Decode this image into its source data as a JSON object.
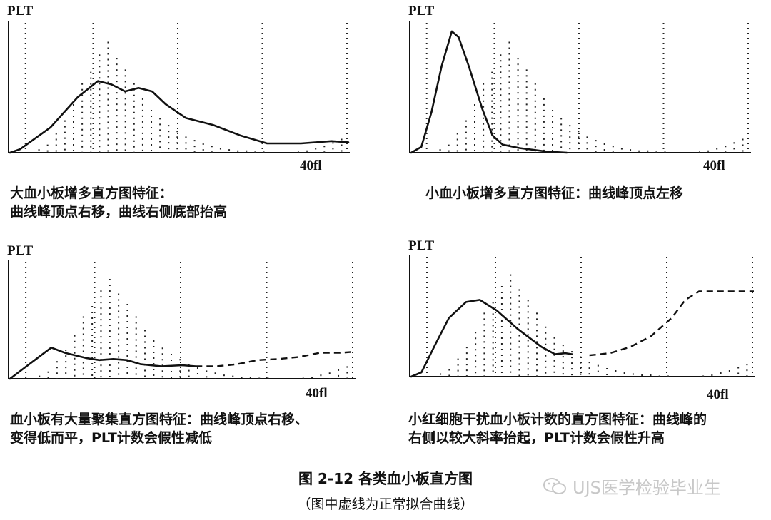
{
  "figure": {
    "title": "图 2-12   各类血小板直方图",
    "subtitle": "（图中虚线为正常拟合曲线）",
    "watermark": "UJS医学检验毕业生"
  },
  "chart_data": [
    {
      "type": "line",
      "ylabel": "PLT",
      "x_tick_label": "40fl",
      "caption": [
        "大血小板增多直方图特征：",
        "曲线峰顶点右移，曲线右侧底部抬高"
      ],
      "solid": [
        [
          0,
          0
        ],
        [
          0.03,
          0.03
        ],
        [
          0.12,
          0.22
        ],
        [
          0.2,
          0.48
        ],
        [
          0.26,
          0.62
        ],
        [
          0.3,
          0.59
        ],
        [
          0.34,
          0.53
        ],
        [
          0.38,
          0.56
        ],
        [
          0.42,
          0.53
        ],
        [
          0.46,
          0.42
        ],
        [
          0.52,
          0.3
        ],
        [
          0.6,
          0.24
        ],
        [
          0.68,
          0.15
        ],
        [
          0.76,
          0.08
        ],
        [
          0.86,
          0.08
        ],
        [
          0.95,
          0.1
        ],
        [
          1.0,
          0.09
        ]
      ],
      "dashed": [],
      "dotted_normal": [
        0,
        0.03,
        0.07,
        0.17,
        0.28,
        0.42,
        0.6,
        0.7,
        0.85,
        0.96,
        0.82,
        0.72,
        0.6,
        0.47,
        0.37,
        0.3,
        0.24,
        0.19,
        0.14,
        0.11,
        0.08,
        0.06,
        0.04,
        0.03,
        0.02,
        0.02,
        0.01,
        0.01,
        0,
        0,
        0,
        0.01,
        0.02,
        0.04,
        0.06,
        0.09,
        0.12
      ],
      "regions": [
        0.05,
        0.25,
        0.5,
        0.75,
        1.0
      ]
    },
    {
      "type": "line",
      "ylabel": "PLT",
      "x_tick_label": "40fl",
      "caption": [
        "小血小板增多直方图特征：曲线峰顶点左移"
      ],
      "solid": [
        [
          0,
          0
        ],
        [
          0.03,
          0.05
        ],
        [
          0.06,
          0.35
        ],
        [
          0.09,
          0.75
        ],
        [
          0.12,
          1.05
        ],
        [
          0.14,
          1.0
        ],
        [
          0.17,
          0.75
        ],
        [
          0.21,
          0.38
        ],
        [
          0.24,
          0.15
        ],
        [
          0.27,
          0.07
        ],
        [
          0.32,
          0.04
        ],
        [
          0.4,
          0.01
        ],
        [
          0.46,
          0
        ]
      ],
      "dashed": [],
      "dotted_normal": [
        0,
        0.03,
        0.07,
        0.17,
        0.28,
        0.42,
        0.6,
        0.7,
        0.85,
        0.96,
        0.82,
        0.72,
        0.6,
        0.47,
        0.37,
        0.3,
        0.24,
        0.19,
        0.14,
        0.11,
        0.08,
        0.06,
        0.04,
        0.03,
        0.02,
        0.02,
        0.01,
        0.01,
        0,
        0,
        0,
        0.01,
        0.02,
        0.04,
        0.06,
        0.09,
        0.12
      ],
      "regions": [
        0.05,
        0.25,
        0.5,
        0.75,
        1.0
      ]
    },
    {
      "type": "line",
      "ylabel": "PLT",
      "x_tick_label": "40fl",
      "caption": [
        "血小板有大量聚集直方图特征：曲线峰顶点右移、",
        "变得低而平，PLT计数会假性减低"
      ],
      "solid": [
        [
          0,
          0
        ],
        [
          0.04,
          0.1
        ],
        [
          0.08,
          0.2
        ],
        [
          0.12,
          0.3
        ],
        [
          0.16,
          0.25
        ],
        [
          0.22,
          0.2
        ],
        [
          0.26,
          0.18
        ],
        [
          0.3,
          0.19
        ],
        [
          0.34,
          0.18
        ],
        [
          0.38,
          0.14
        ],
        [
          0.44,
          0.12
        ],
        [
          0.5,
          0.13
        ],
        [
          0.54,
          0.12
        ]
      ],
      "dashed": [
        [
          0.54,
          0.12
        ],
        [
          0.6,
          0.12
        ],
        [
          0.66,
          0.14
        ],
        [
          0.72,
          0.18
        ],
        [
          0.78,
          0.19
        ],
        [
          0.84,
          0.21
        ],
        [
          0.9,
          0.25
        ],
        [
          0.96,
          0.25
        ],
        [
          1.0,
          0.26
        ]
      ],
      "dotted_normal": [
        0,
        0.03,
        0.07,
        0.17,
        0.28,
        0.42,
        0.6,
        0.7,
        0.85,
        0.96,
        0.82,
        0.72,
        0.6,
        0.47,
        0.37,
        0.3,
        0.24,
        0.19,
        0.14,
        0.11,
        0.08,
        0.06,
        0.04,
        0.03,
        0.02,
        0.02,
        0.01,
        0.01,
        0,
        0,
        0,
        0.01,
        0.02,
        0.04,
        0.06,
        0.09,
        0.12
      ],
      "regions": [
        0.05,
        0.25,
        0.5,
        0.75,
        1.0
      ]
    },
    {
      "type": "line",
      "ylabel": "PLT",
      "x_tick_label": "40fl",
      "caption": [
        "小红细胞干扰血小板计数的直方图特征：曲线峰的",
        "右侧以较大斜率抬起，PLT计数会假性升高"
      ],
      "solid": [
        [
          0,
          0
        ],
        [
          0.03,
          0.04
        ],
        [
          0.07,
          0.3
        ],
        [
          0.11,
          0.55
        ],
        [
          0.16,
          0.7
        ],
        [
          0.2,
          0.72
        ],
        [
          0.25,
          0.62
        ],
        [
          0.31,
          0.45
        ],
        [
          0.38,
          0.28
        ],
        [
          0.42,
          0.21
        ],
        [
          0.45,
          0.22
        ],
        [
          0.47,
          0.21
        ]
      ],
      "dashed": [
        [
          0.52,
          0.2
        ],
        [
          0.58,
          0.22
        ],
        [
          0.64,
          0.28
        ],
        [
          0.7,
          0.38
        ],
        [
          0.76,
          0.55
        ],
        [
          0.8,
          0.72
        ],
        [
          0.84,
          0.8
        ],
        [
          0.9,
          0.8
        ],
        [
          1.0,
          0.8
        ]
      ],
      "dotted_normal": [
        0,
        0.03,
        0.07,
        0.17,
        0.28,
        0.42,
        0.6,
        0.7,
        0.85,
        0.96,
        0.82,
        0.72,
        0.6,
        0.47,
        0.37,
        0.3,
        0.24,
        0.19,
        0.14,
        0.11,
        0.08,
        0.06,
        0.04,
        0.03,
        0.02,
        0.02,
        0.01,
        0.01,
        0,
        0,
        0,
        0.01,
        0.02,
        0.04,
        0.06,
        0.09,
        0.12
      ],
      "regions": [
        0.05,
        0.25,
        0.5,
        0.75,
        1.0
      ]
    }
  ]
}
